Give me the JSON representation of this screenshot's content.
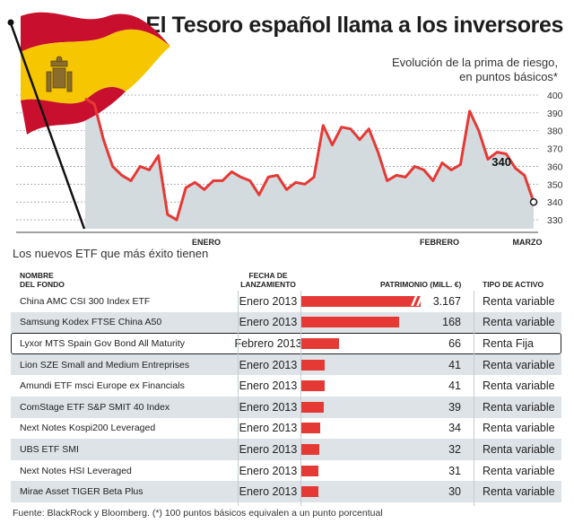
{
  "header": {
    "title": "El Tesoro español llama a los inversores",
    "subtitle_line1": "Evolución de la prima de riesgo,",
    "subtitle_line2": "en puntos básicos*"
  },
  "chart_data": [
    {
      "type": "area",
      "x_ticks": [
        "ENERO",
        "FEBRERO",
        "MARZO"
      ],
      "y_ticks": [
        330,
        340,
        350,
        360,
        370,
        380,
        390,
        400
      ],
      "ylim": [
        325,
        402
      ],
      "grid": true,
      "values": [
        398,
        395,
        375,
        360,
        355,
        352,
        360,
        358,
        366,
        333,
        330,
        348,
        351,
        347,
        352,
        352,
        357,
        354,
        352,
        344,
        354,
        355,
        347,
        351,
        350,
        354,
        383,
        372,
        382,
        381,
        375,
        381,
        368,
        352,
        355,
        354,
        360,
        358,
        352,
        362,
        358,
        361,
        391,
        380,
        364,
        368,
        367,
        359,
        355,
        340
      ],
      "last_value_label": "340",
      "colors": {
        "line": "#e53935",
        "area": "#d3dbdf",
        "grid": "#9aa3a8",
        "marker": "#222222"
      }
    },
    {
      "type": "table",
      "section_title": "Los nuevos ETF que más éxito tienen",
      "columns": {
        "name_1": "NOMBRE",
        "name_2": "DEL FONDO",
        "date_1": "FECHA DE",
        "date_2": "LANZAMIENTO",
        "patrimonio": "PATRIMONIO (MILL. €)",
        "tipo": "TIPO DE ACTIVO"
      },
      "bar_scale_max": 168,
      "rows": [
        {
          "name": "China AMC CSI 300 Index ETF",
          "date": "Enero 2013",
          "value": "3.167",
          "numeric": 3167,
          "type": "Renta variable",
          "broken": true
        },
        {
          "name": "Samsung Kodex FTSE China A50",
          "date": "Enero 2013",
          "value": "168",
          "numeric": 168,
          "type": "Renta variable"
        },
        {
          "name": "Lyxor MTS Spain Gov Bond All Maturity",
          "date": "Febrero 2013",
          "value": "66",
          "numeric": 66,
          "type": "Renta Fija",
          "highlight": true
        },
        {
          "name": "Lion SZE Small and Medium Entreprises",
          "date": "Enero 2013",
          "value": "41",
          "numeric": 41,
          "type": "Renta variable"
        },
        {
          "name": "Amundi ETF msci Europe ex Financials",
          "date": "Enero 2013",
          "value": "41",
          "numeric": 41,
          "type": "Renta variable"
        },
        {
          "name": "ComStage ETF S&P SMIT 40 Index",
          "date": "Enero 2013",
          "value": "39",
          "numeric": 39,
          "type": "Renta variable"
        },
        {
          "name": "Next Notes Kospi200 Leveraged",
          "date": "Enero 2013",
          "value": "34",
          "numeric": 34,
          "type": "Renta variable"
        },
        {
          "name": "UBS ETF SMI",
          "date": "Enero 2013",
          "value": "32",
          "numeric": 32,
          "type": "Renta variable"
        },
        {
          "name": "Next Notes HSI Leveraged",
          "date": "Enero 2013",
          "value": "31",
          "numeric": 31,
          "type": "Renta variable"
        },
        {
          "name": "Mirae Asset TIGER Beta Plus",
          "date": "Enero 2013",
          "value": "30",
          "numeric": 30,
          "type": "Renta variable"
        }
      ],
      "colors": {
        "bar": "#e53935",
        "row_shade": "#dde3e7"
      }
    }
  ],
  "flag": {
    "colors": {
      "red": "#c8102e",
      "yellow": "#f6c700",
      "emblem": "#8a6d2b",
      "pole": "#111111"
    }
  },
  "footer": {
    "source": "Fuente: BlackRock y Bloomberg. (*) 100 puntos básicos equivalen a un punto porcentual"
  }
}
